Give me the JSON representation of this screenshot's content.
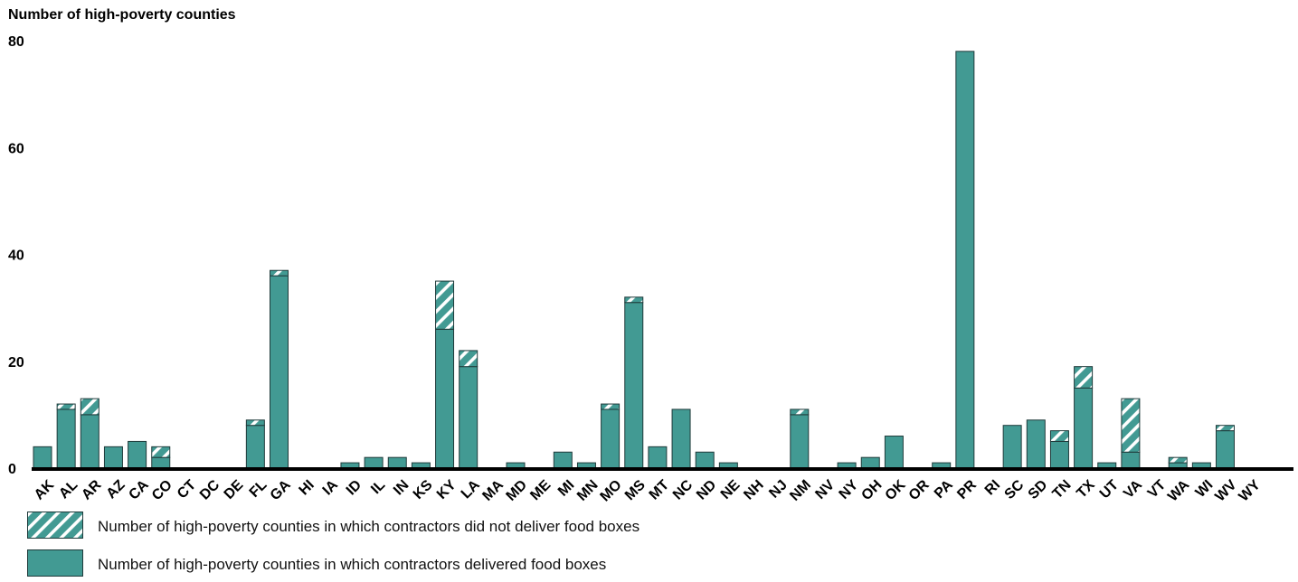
{
  "chart_data": {
    "type": "bar",
    "stacked": true,
    "ylabel": "Number of high-poverty counties",
    "ylim": [
      0,
      80
    ],
    "yticks": [
      0,
      20,
      40,
      60,
      80
    ],
    "categories": [
      "AK",
      "AL",
      "AR",
      "AZ",
      "CA",
      "CO",
      "CT",
      "DC",
      "DE",
      "FL",
      "GA",
      "HI",
      "IA",
      "ID",
      "IL",
      "IN",
      "KS",
      "KY",
      "LA",
      "MA",
      "MD",
      "ME",
      "MI",
      "MN",
      "MO",
      "MS",
      "MT",
      "NC",
      "ND",
      "NE",
      "NH",
      "NJ",
      "NM",
      "NV",
      "NY",
      "OH",
      "OK",
      "OR",
      "PA",
      "PR",
      "RI",
      "SC",
      "SD",
      "TN",
      "TX",
      "UT",
      "VA",
      "VT",
      "WA",
      "WI",
      "WV",
      "WY"
    ],
    "series": [
      {
        "name": "Number of high-poverty counties in which contractors delivered food boxes",
        "values": [
          4,
          11,
          10,
          4,
          5,
          2,
          0,
          0,
          0,
          8,
          36,
          0,
          0,
          1,
          2,
          2,
          1,
          26,
          19,
          0,
          1,
          0,
          3,
          1,
          11,
          31,
          4,
          11,
          3,
          1,
          0,
          0,
          10,
          0,
          1,
          2,
          6,
          0,
          1,
          78,
          0,
          8,
          9,
          5,
          15,
          1,
          3,
          0,
          1,
          1,
          7,
          0
        ]
      },
      {
        "name": "Number of high-poverty counties in which contractors did not deliver food boxes",
        "values": [
          0,
          1,
          3,
          0,
          0,
          2,
          0,
          0,
          0,
          1,
          1,
          0,
          0,
          0,
          0,
          0,
          0,
          9,
          3,
          0,
          0,
          0,
          0,
          0,
          1,
          1,
          0,
          0,
          0,
          0,
          0,
          0,
          1,
          0,
          0,
          0,
          0,
          0,
          0,
          0,
          0,
          0,
          0,
          2,
          4,
          0,
          10,
          0,
          1,
          0,
          1,
          0
        ]
      }
    ],
    "colors": {
      "delivered": "#429a93",
      "not_delivered_stripe": "#429a93",
      "outline": "#1f3a3a",
      "axis": "#000000"
    },
    "grid": false,
    "legend_position": "bottom-left"
  }
}
